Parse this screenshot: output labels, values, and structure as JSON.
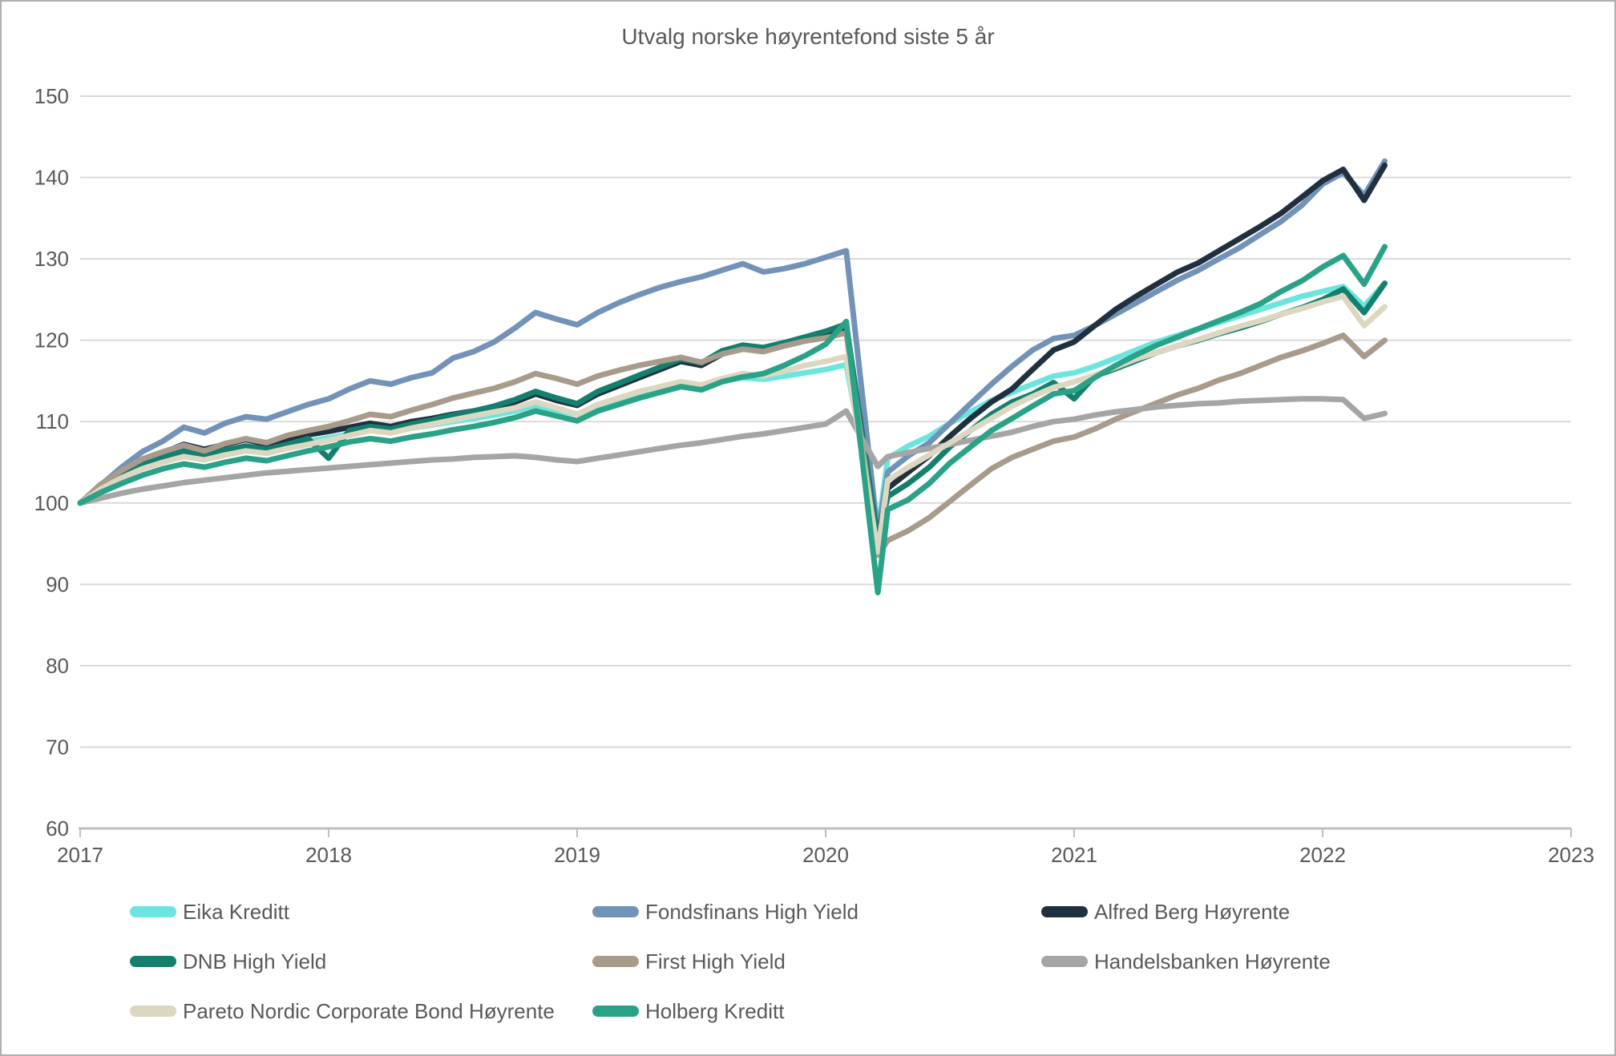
{
  "chart_data": {
    "type": "line",
    "title": "Utvalg norske høyrentefond siste 5 år",
    "xlabel": "",
    "ylabel": "",
    "xlim": [
      2017,
      2023
    ],
    "ylim": [
      60,
      150
    ],
    "x_ticks": [
      2017,
      2018,
      2019,
      2020,
      2021,
      2022,
      2023
    ],
    "y_ticks": [
      60,
      70,
      80,
      90,
      100,
      110,
      120,
      130,
      140,
      150
    ],
    "grid": "horizontal",
    "legend_position": "bottom",
    "text_color": "#595959",
    "gridline_color": "#d9d9d9",
    "axis_color": "#bfbfbf",
    "x": [
      2017.0,
      2017.083,
      2017.167,
      2017.25,
      2017.333,
      2017.417,
      2017.5,
      2017.583,
      2017.667,
      2017.75,
      2017.833,
      2017.917,
      2018.0,
      2018.083,
      2018.167,
      2018.25,
      2018.333,
      2018.417,
      2018.5,
      2018.583,
      2018.667,
      2018.75,
      2018.833,
      2018.917,
      2019.0,
      2019.083,
      2019.167,
      2019.25,
      2019.333,
      2019.417,
      2019.5,
      2019.583,
      2019.667,
      2019.75,
      2019.833,
      2019.917,
      2020.0,
      2020.083,
      2020.21,
      2020.25,
      2020.333,
      2020.417,
      2020.5,
      2020.583,
      2020.667,
      2020.75,
      2020.833,
      2020.917,
      2021.0,
      2021.083,
      2021.167,
      2021.25,
      2021.333,
      2021.417,
      2021.5,
      2021.583,
      2021.667,
      2021.75,
      2021.833,
      2021.917,
      2022.0,
      2022.083,
      2022.167,
      2022.25
    ],
    "series": [
      {
        "name": "Eika Kreditt",
        "key": "eika-kreditt",
        "color": "#6ce5de",
        "values": [
          100,
          101.6,
          103.2,
          104.6,
          105.2,
          106,
          105.6,
          106.2,
          106.8,
          106.4,
          107,
          107.6,
          108,
          108.5,
          109,
          108.7,
          109.2,
          109.6,
          110,
          110.4,
          110.8,
          111.3,
          112,
          111.4,
          110.9,
          112,
          112.8,
          113.6,
          114.1,
          114.6,
          114.2,
          115,
          115.4,
          115.2,
          115.6,
          116,
          116.4,
          117,
          96.5,
          105.5,
          107,
          108.2,
          109.8,
          111.2,
          112.6,
          113.6,
          114.6,
          115.6,
          116,
          116.8,
          117.8,
          118.8,
          119.8,
          120.6,
          121.4,
          122.2,
          123,
          123.8,
          124.6,
          125.4,
          126,
          126.6,
          124.2,
          127
        ]
      },
      {
        "name": "Fondsfinans High Yield",
        "key": "fondsfinans-high-yield",
        "color": "#7292b8",
        "values": [
          100,
          102.2,
          104.4,
          106.3,
          107.6,
          109.3,
          108.6,
          109.8,
          110.6,
          110.3,
          111.2,
          112.1,
          112.8,
          114,
          115,
          114.6,
          115.4,
          116,
          117.8,
          118.6,
          119.8,
          121.5,
          123.4,
          122.6,
          121.9,
          123.4,
          124.6,
          125.6,
          126.5,
          127.2,
          127.8,
          128.6,
          129.4,
          128.4,
          128.8,
          129.4,
          130.2,
          131,
          96.2,
          103.8,
          105.8,
          107.4,
          109.8,
          112.2,
          114.6,
          116.8,
          118.8,
          120.2,
          120.6,
          121.8,
          123.2,
          124.6,
          126,
          127.4,
          128.6,
          130,
          131.4,
          133,
          134.6,
          136.6,
          139.2,
          140.6,
          137.8,
          142
        ]
      },
      {
        "name": "Alfred Berg Høyrente",
        "key": "alfred-berg-hoyrente",
        "color": "#21303f",
        "values": [
          100,
          102,
          103.8,
          105.3,
          106.2,
          107.2,
          106.6,
          107.2,
          107.8,
          107.2,
          107.8,
          108.4,
          108.8,
          109.3,
          109.8,
          109.4,
          110,
          110.4,
          110.9,
          111.3,
          111.8,
          112.4,
          113.4,
          112.6,
          112,
          113.4,
          114.4,
          115.4,
          116.4,
          117.4,
          116.9,
          118.3,
          119,
          118.8,
          119.4,
          120,
          120.6,
          121.4,
          95.5,
          101.8,
          103.8,
          105.8,
          108.2,
          110.4,
          112.4,
          114,
          116.4,
          118.8,
          119.8,
          121.8,
          123.8,
          125.4,
          126.9,
          128.4,
          129.5,
          131,
          132.5,
          134,
          135.6,
          137.6,
          139.6,
          141,
          137.2,
          141.5
        ]
      },
      {
        "name": "DNB High Yield",
        "key": "dnb-high-yield",
        "color": "#147f6e",
        "values": [
          100,
          101.9,
          103.5,
          104.8,
          105.6,
          106.4,
          105.9,
          106.5,
          107,
          106.6,
          107.2,
          107.9,
          105.5,
          108.9,
          109.4,
          109.1,
          109.7,
          110.2,
          110.8,
          111.3,
          111.9,
          112.7,
          113.7,
          112.9,
          112.2,
          113.7,
          114.7,
          115.7,
          116.7,
          117.7,
          117.2,
          118.7,
          119.4,
          119.1,
          119.7,
          120.4,
          121.1,
          122,
          95.5,
          100.8,
          102.4,
          104.4,
          106.9,
          108.9,
          110.9,
          112.4,
          113.4,
          114.8,
          112.8,
          115.6,
          116.5,
          117.5,
          118.5,
          119.3,
          120,
          120.8,
          121.5,
          122.3,
          123.2,
          124,
          125,
          126.3,
          123.4,
          127
        ]
      },
      {
        "name": "First High Yield",
        "key": "first-high-yield",
        "color": "#a89b8c",
        "values": [
          100,
          102.3,
          104,
          105.4,
          106.3,
          107.1,
          106.4,
          107.3,
          107.9,
          107.4,
          108.3,
          108.9,
          109.4,
          110.1,
          110.9,
          110.6,
          111.4,
          112.1,
          112.9,
          113.5,
          114.1,
          114.9,
          115.9,
          115.3,
          114.6,
          115.6,
          116.3,
          116.9,
          117.4,
          117.9,
          117.3,
          118.3,
          118.9,
          118.6,
          119.3,
          119.9,
          120.3,
          120.9,
          93.6,
          95.4,
          96.6,
          98.2,
          100.2,
          102.2,
          104.2,
          105.6,
          106.6,
          107.6,
          108.1,
          109.1,
          110.3,
          111.3,
          112.3,
          113.3,
          114.1,
          115.1,
          115.9,
          116.9,
          117.9,
          118.7,
          119.6,
          120.6,
          118,
          120
        ]
      },
      {
        "name": "Handelsbanken Høyrente",
        "key": "handelsbanken-hoyrente",
        "color": "#a5a5a5",
        "values": [
          100,
          100.6,
          101.2,
          101.7,
          102.1,
          102.5,
          102.8,
          103.1,
          103.4,
          103.7,
          103.9,
          104.1,
          104.3,
          104.5,
          104.7,
          104.9,
          105.1,
          105.3,
          105.4,
          105.6,
          105.7,
          105.8,
          105.6,
          105.3,
          105.1,
          105.5,
          105.9,
          106.3,
          106.7,
          107.1,
          107.4,
          107.8,
          108.2,
          108.5,
          108.9,
          109.3,
          109.7,
          111.3,
          104.5,
          105.7,
          106.2,
          106.7,
          107.2,
          107.7,
          108.2,
          108.7,
          109.4,
          110,
          110.3,
          110.8,
          111.2,
          111.5,
          111.8,
          112,
          112.2,
          112.3,
          112.5,
          112.6,
          112.7,
          112.8,
          112.8,
          112.7,
          110.4,
          111
        ]
      },
      {
        "name": "Pareto Nordic Corporate Bond Høyrente",
        "key": "pareto-nordic-corporate-bond-hoyrente",
        "color": "#dcd7c0",
        "values": [
          100,
          101.7,
          103.1,
          104.2,
          105,
          105.7,
          105.3,
          105.9,
          106.4,
          106.1,
          106.7,
          107.2,
          107.7,
          108.3,
          108.9,
          108.6,
          109.2,
          109.7,
          110.2,
          110.7,
          111.2,
          111.7,
          112.4,
          111.7,
          110.9,
          112.1,
          112.9,
          113.7,
          114.3,
          114.9,
          114.5,
          115.3,
          115.9,
          115.6,
          116.2,
          116.9,
          117.4,
          118,
          94,
          102.8,
          104.4,
          105.9,
          107.4,
          108.9,
          110.4,
          111.9,
          113.1,
          114.2,
          114.9,
          115.7,
          116.7,
          117.7,
          118.5,
          119.3,
          120.1,
          120.9,
          121.7,
          122.4,
          123.2,
          123.9,
          124.7,
          125.4,
          121.8,
          124.1
        ]
      },
      {
        "name": "Holberg Kreditt",
        "key": "holberg-kreditt",
        "color": "#29a287",
        "values": [
          100,
          101.3,
          102.4,
          103.4,
          104.2,
          104.8,
          104.4,
          105,
          105.5,
          105.2,
          105.8,
          106.4,
          106.9,
          107.5,
          107.9,
          107.6,
          108.1,
          108.5,
          109,
          109.4,
          109.9,
          110.5,
          111.3,
          110.7,
          110.1,
          111.3,
          112.1,
          112.9,
          113.6,
          114.3,
          113.9,
          114.9,
          115.5,
          115.9,
          116.9,
          118.1,
          119.5,
          122.3,
          89,
          99.2,
          100.4,
          102.4,
          104.9,
          106.9,
          108.9,
          110.4,
          111.9,
          113.4,
          113.8,
          115.4,
          116.9,
          118.2,
          119.4,
          120.4,
          121.4,
          122.4,
          123.4,
          124.5,
          126,
          127.3,
          129,
          130.4,
          126.9,
          131.5
        ]
      }
    ]
  }
}
